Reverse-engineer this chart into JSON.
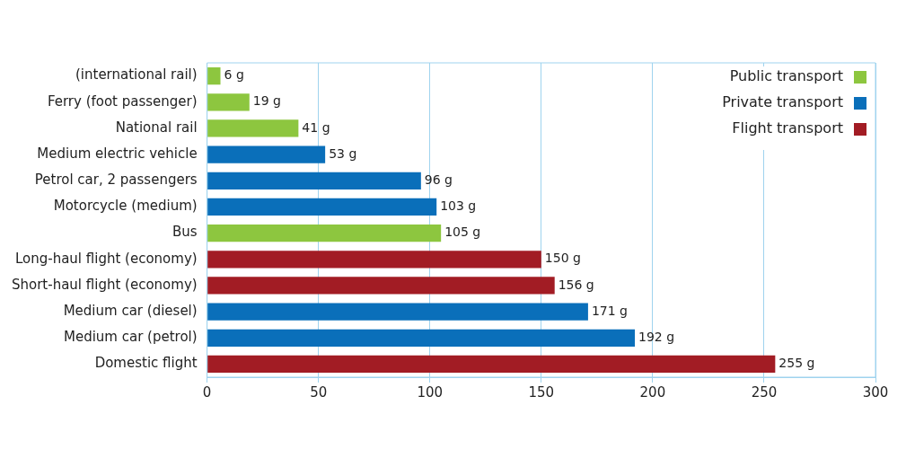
{
  "chart_data": {
    "type": "bar",
    "orientation": "horizontal",
    "categories": [
      "(international rail)",
      "Ferry (foot passenger)",
      "National rail",
      "Medium electric vehicle",
      "Petrol car, 2 passengers",
      "Motorcycle (medium)",
      "Bus",
      "Long-haul flight (economy)",
      "Short-haul flight (economy)",
      "Medium car (diesel)",
      "Medium car (petrol)",
      "Domestic flight"
    ],
    "series": [
      {
        "name": "Public transport",
        "color": "#8dc63f",
        "values": [
          6,
          19,
          41,
          null,
          null,
          null,
          105,
          null,
          null,
          null,
          null,
          null
        ],
        "value_labels": [
          "6 g",
          "19 g",
          "41 g",
          null,
          null,
          null,
          "105 g",
          null,
          null,
          null,
          null,
          null
        ]
      },
      {
        "name": "Private transport",
        "color": "#0a6fba",
        "values": [
          null,
          null,
          null,
          53,
          96,
          103,
          null,
          null,
          null,
          171,
          192,
          null
        ],
        "value_labels": [
          null,
          null,
          null,
          "53 g",
          "96 g",
          "103 g",
          null,
          null,
          null,
          "171 g",
          "192 g",
          null
        ]
      },
      {
        "name": "Flight transport",
        "color": "#a21c24",
        "values": [
          null,
          null,
          null,
          null,
          null,
          null,
          null,
          150,
          156,
          null,
          null,
          255
        ],
        "value_labels": [
          null,
          null,
          null,
          null,
          null,
          null,
          null,
          "150 g",
          "156 g",
          null,
          null,
          "255 g"
        ]
      }
    ],
    "xlim": [
      0,
      300
    ],
    "xticks": [
      0,
      50,
      100,
      150,
      200,
      250,
      300
    ],
    "grid": "x",
    "legend": "top right"
  }
}
